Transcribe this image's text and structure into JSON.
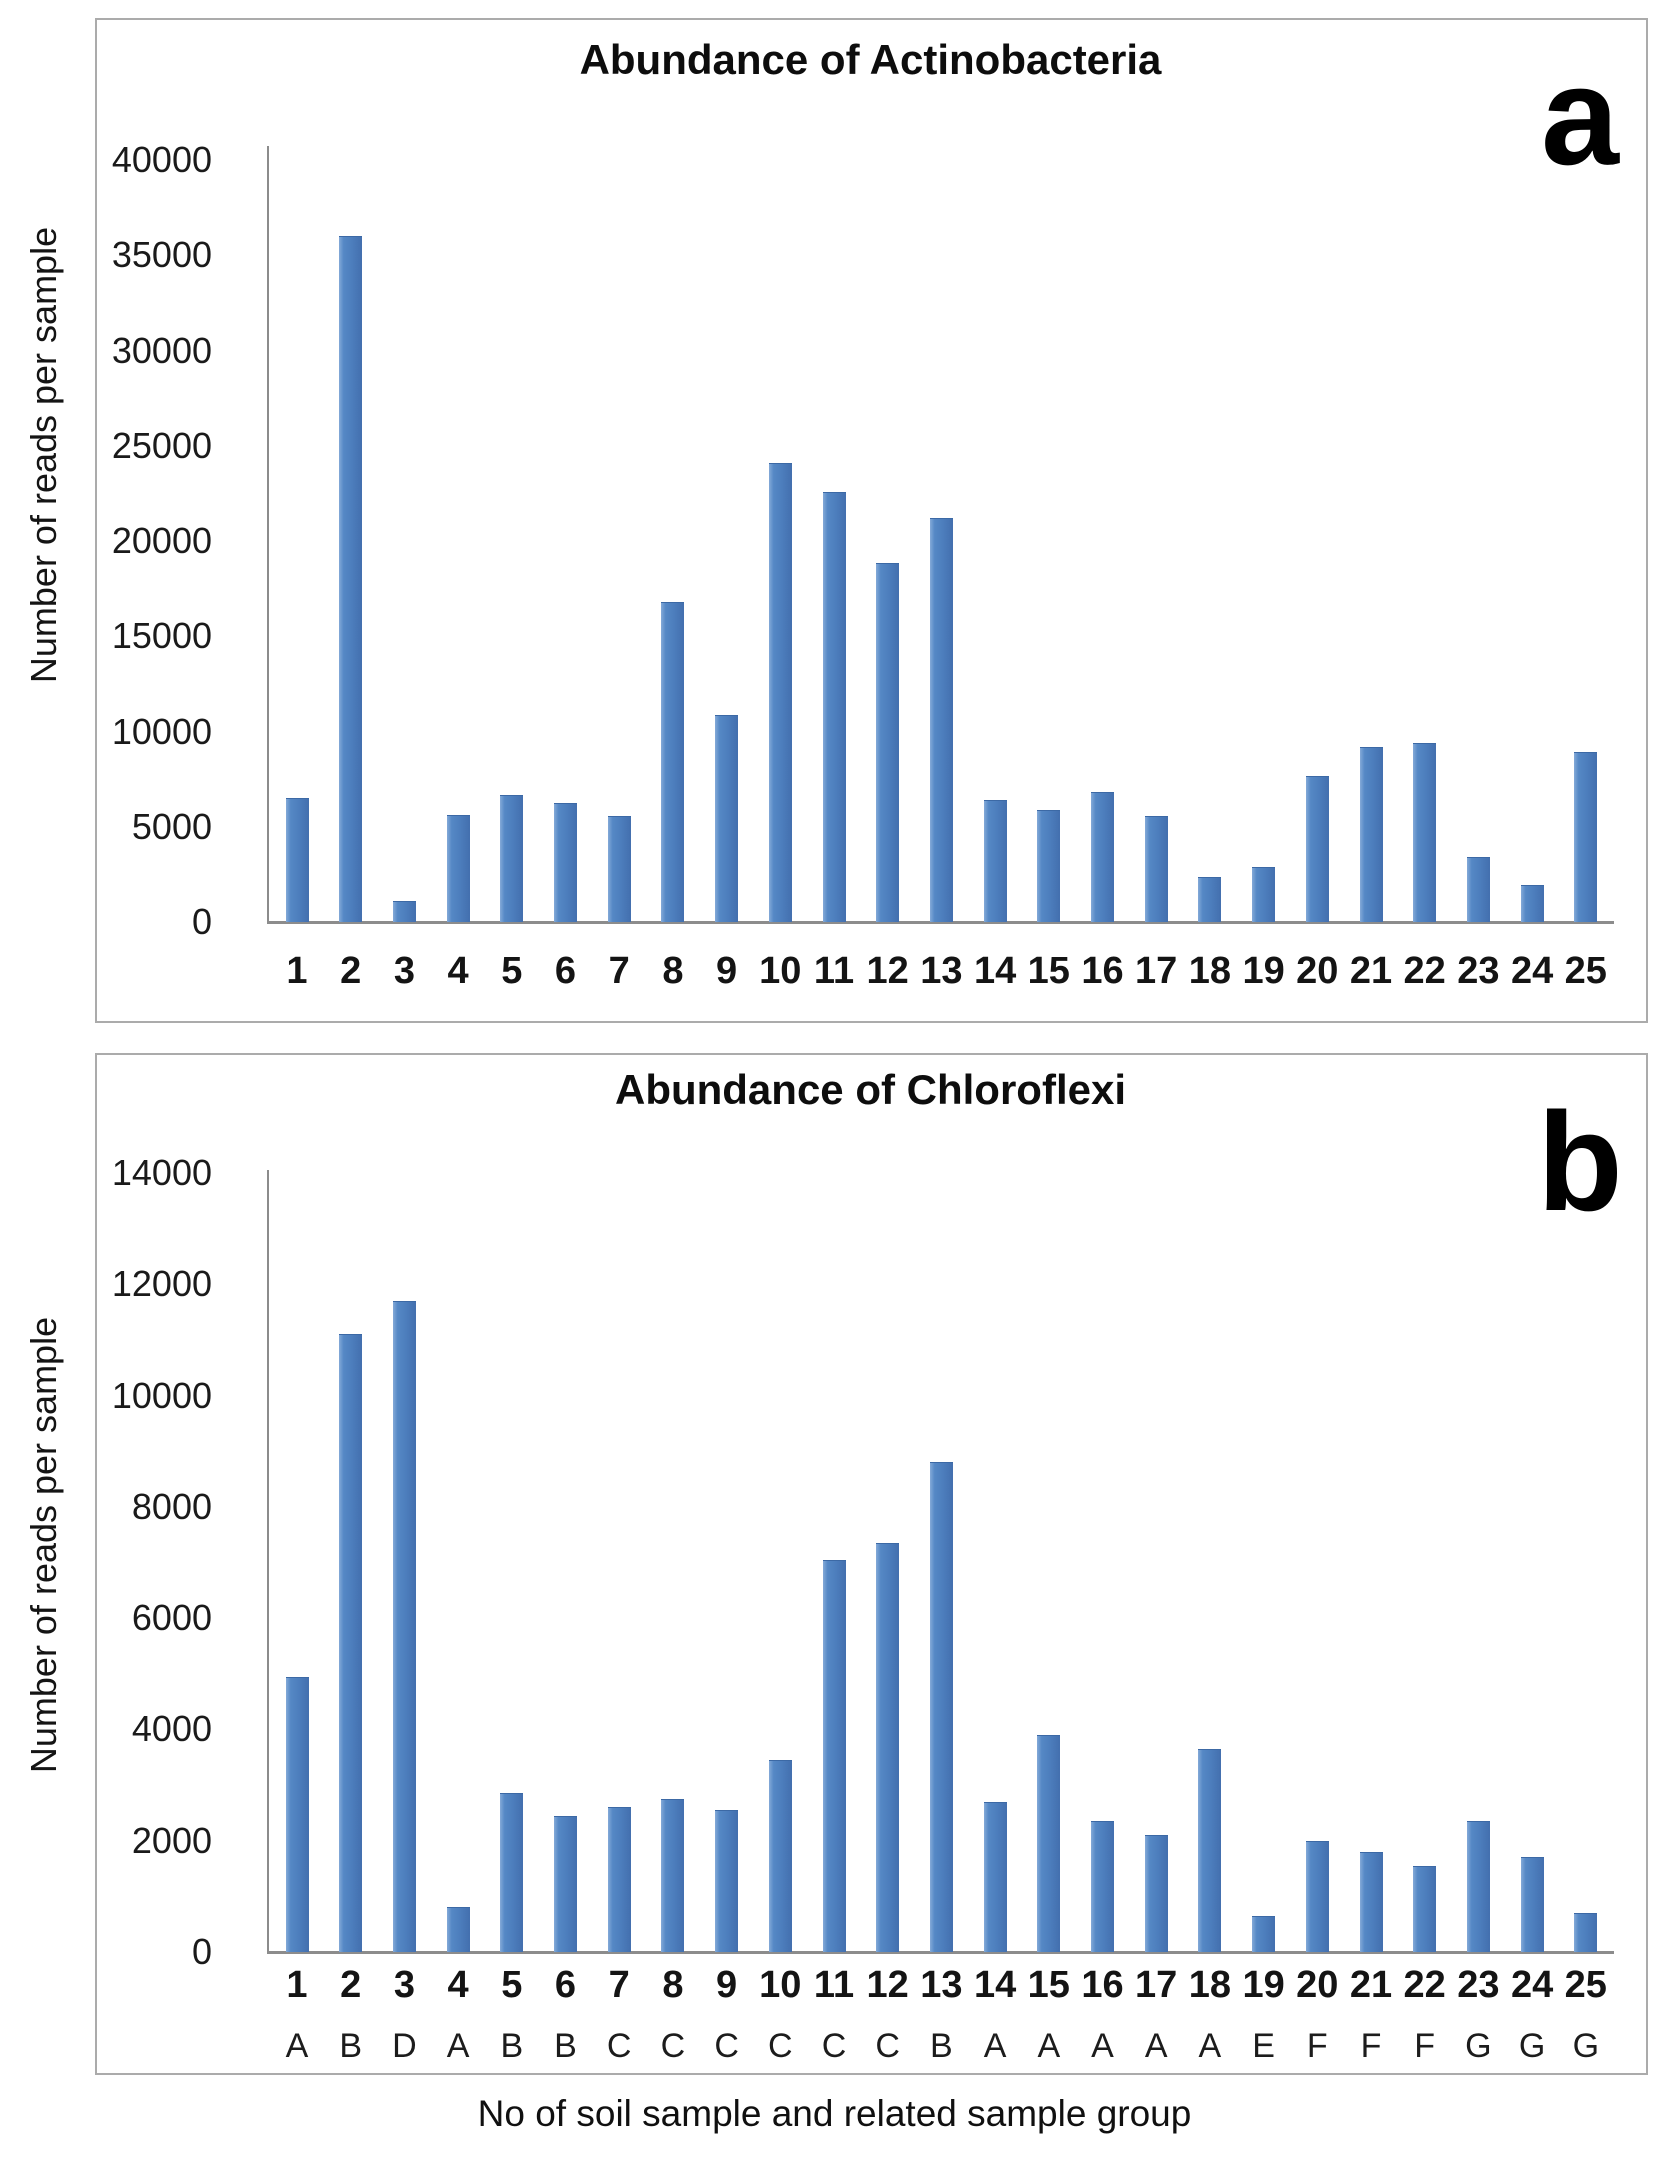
{
  "figure": {
    "caption": "No of soil sample and related sample group",
    "bar_color": "#4d7ebd",
    "border_color": "#ababab"
  },
  "chart_data": [
    {
      "type": "bar",
      "panel_label": "a",
      "title": "Abundance of Actinobacteria",
      "ylabel": "Number of reads per sample",
      "xlabel": "",
      "ylim": [
        0,
        40000
      ],
      "grid": false,
      "legend": null,
      "yticks": [
        40000,
        35000,
        30000,
        25000,
        20000,
        15000,
        10000,
        5000,
        0
      ],
      "categories": [
        "1",
        "2",
        "3",
        "4",
        "5",
        "6",
        "7",
        "8",
        "9",
        "10",
        "11",
        "12",
        "13",
        "14",
        "15",
        "16",
        "17",
        "18",
        "19",
        "20",
        "21",
        "22",
        "23",
        "24",
        "25"
      ],
      "values": [
        6500,
        36000,
        1100,
        5600,
        6650,
        6250,
        5550,
        16800,
        10850,
        24100,
        22550,
        18850,
        21200,
        6400,
        5900,
        6800,
        5550,
        2350,
        2900,
        7650,
        9200,
        9400,
        3400,
        1950,
        8950
      ]
    },
    {
      "type": "bar",
      "panel_label": "b",
      "title": "Abundance of Chloroflexi",
      "ylabel": "Number of reads per sample",
      "xlabel": "",
      "ylim": [
        0,
        14000
      ],
      "grid": false,
      "legend": null,
      "yticks": [
        14000,
        12000,
        10000,
        8000,
        6000,
        4000,
        2000,
        0
      ],
      "categories": [
        "1",
        "2",
        "3",
        "4",
        "5",
        "6",
        "7",
        "8",
        "9",
        "10",
        "11",
        "12",
        "13",
        "14",
        "15",
        "16",
        "17",
        "18",
        "19",
        "20",
        "21",
        "22",
        "23",
        "24",
        "25"
      ],
      "group_labels": [
        "A",
        "B",
        "D",
        "A",
        "B",
        "B",
        "C",
        "C",
        "C",
        "C",
        "C",
        "C",
        "B",
        "A",
        "A",
        "A",
        "A",
        "A",
        "E",
        "F",
        "F",
        "F",
        "G",
        "G",
        "G"
      ],
      "values": [
        4950,
        11100,
        11700,
        800,
        2850,
        2450,
        2600,
        2750,
        2550,
        3450,
        7050,
        7350,
        8800,
        2700,
        3900,
        2350,
        2100,
        3650,
        650,
        2000,
        1800,
        1550,
        2350,
        1700,
        700
      ]
    }
  ]
}
